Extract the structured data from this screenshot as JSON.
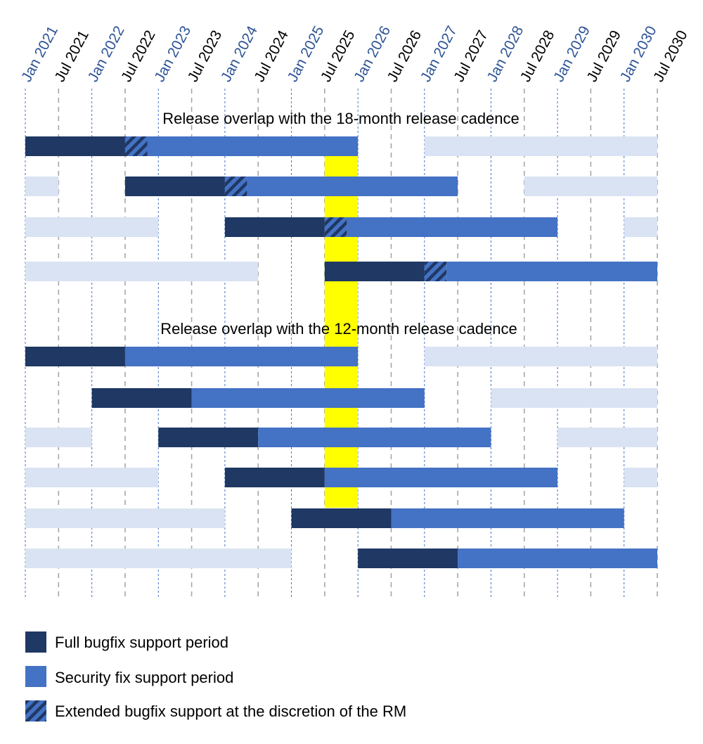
{
  "chart_data": {
    "type": "gantt",
    "colors": {
      "full": "#1f3864",
      "security": "#4472c4",
      "extended": "#4472c4",
      "extended_hatch": "#1f3864",
      "other_release": "#dae3f3",
      "highlight": "#ffff00",
      "tick_jan": "#2f5597",
      "tick_jul": "#000000",
      "grid_jan": "#4472c4",
      "grid_jul": "#a6a6a6"
    },
    "x_ticks": [
      "Jan 2021",
      "Jul 2021",
      "Jan 2022",
      "Jul 2022",
      "Jan 2023",
      "Jul 2023",
      "Jan 2024",
      "Jul 2024",
      "Jan 2025",
      "Jul 2025",
      "Jan 2026",
      "Jul 2026",
      "Jan 2027",
      "Jul 2027",
      "Jan 2028",
      "Jul 2028",
      "Jan 2029",
      "Jul 2029",
      "Jan 2030",
      "Jul 2030"
    ],
    "x_range": [
      "2021-01",
      "2030-07"
    ],
    "grid": true,
    "highlight": {
      "start": "2025-07",
      "end": "2026-01"
    },
    "groups": [
      {
        "title": "Release overlap with the 18-month release cadence",
        "rows": [
          [
            {
              "type": "full",
              "start": "2021-01",
              "end": "2022-07"
            },
            {
              "type": "extended",
              "start": "2022-07",
              "end": "2022-11"
            },
            {
              "type": "security",
              "start": "2022-11",
              "end": "2026-01"
            },
            {
              "type": "other_release",
              "start": "2027-01",
              "end": "2030-07"
            }
          ],
          [
            {
              "type": "other_release",
              "start": "2021-01",
              "end": "2021-07"
            },
            {
              "type": "full",
              "start": "2022-07",
              "end": "2024-01"
            },
            {
              "type": "extended",
              "start": "2024-01",
              "end": "2024-05"
            },
            {
              "type": "security",
              "start": "2024-05",
              "end": "2027-07"
            },
            {
              "type": "other_release",
              "start": "2028-07",
              "end": "2030-07"
            }
          ],
          [
            {
              "type": "other_release",
              "start": "2021-01",
              "end": "2023-01"
            },
            {
              "type": "full",
              "start": "2024-01",
              "end": "2025-07"
            },
            {
              "type": "extended",
              "start": "2025-07",
              "end": "2025-11"
            },
            {
              "type": "security",
              "start": "2025-11",
              "end": "2029-01"
            },
            {
              "type": "other_release",
              "start": "2030-01",
              "end": "2030-07"
            }
          ],
          [
            {
              "type": "other_release",
              "start": "2021-01",
              "end": "2024-07"
            },
            {
              "type": "full",
              "start": "2025-07",
              "end": "2027-01"
            },
            {
              "type": "extended",
              "start": "2027-01",
              "end": "2027-05"
            },
            {
              "type": "security",
              "start": "2027-05",
              "end": "2030-07"
            }
          ]
        ]
      },
      {
        "title": "Release overlap with the 12-month release cadence",
        "rows": [
          [
            {
              "type": "full",
              "start": "2021-01",
              "end": "2022-07"
            },
            {
              "type": "security",
              "start": "2022-07",
              "end": "2026-01"
            },
            {
              "type": "other_release",
              "start": "2027-01",
              "end": "2030-07"
            }
          ],
          [
            {
              "type": "full",
              "start": "2022-01",
              "end": "2023-07"
            },
            {
              "type": "security",
              "start": "2023-07",
              "end": "2027-01"
            },
            {
              "type": "other_release",
              "start": "2028-01",
              "end": "2030-07"
            }
          ],
          [
            {
              "type": "other_release",
              "start": "2021-01",
              "end": "2022-01"
            },
            {
              "type": "full",
              "start": "2023-01",
              "end": "2024-07"
            },
            {
              "type": "security",
              "start": "2024-07",
              "end": "2028-01"
            },
            {
              "type": "other_release",
              "start": "2029-01",
              "end": "2030-07"
            }
          ],
          [
            {
              "type": "other_release",
              "start": "2021-01",
              "end": "2023-01"
            },
            {
              "type": "full",
              "start": "2024-01",
              "end": "2025-07"
            },
            {
              "type": "security",
              "start": "2025-07",
              "end": "2029-01"
            },
            {
              "type": "other_release",
              "start": "2030-01",
              "end": "2030-07"
            }
          ],
          [
            {
              "type": "other_release",
              "start": "2021-01",
              "end": "2024-01"
            },
            {
              "type": "full",
              "start": "2025-01",
              "end": "2026-07"
            },
            {
              "type": "security",
              "start": "2026-07",
              "end": "2030-01"
            }
          ],
          [
            {
              "type": "other_release",
              "start": "2021-01",
              "end": "2025-01"
            },
            {
              "type": "full",
              "start": "2026-01",
              "end": "2027-07"
            },
            {
              "type": "security",
              "start": "2027-07",
              "end": "2030-07"
            }
          ]
        ]
      }
    ],
    "legend": [
      {
        "type": "full",
        "label": "Full bugfix support period"
      },
      {
        "type": "security",
        "label": "Security fix support period"
      },
      {
        "type": "extended",
        "label": "Extended bugfix support at the discretion of the RM"
      }
    ]
  }
}
